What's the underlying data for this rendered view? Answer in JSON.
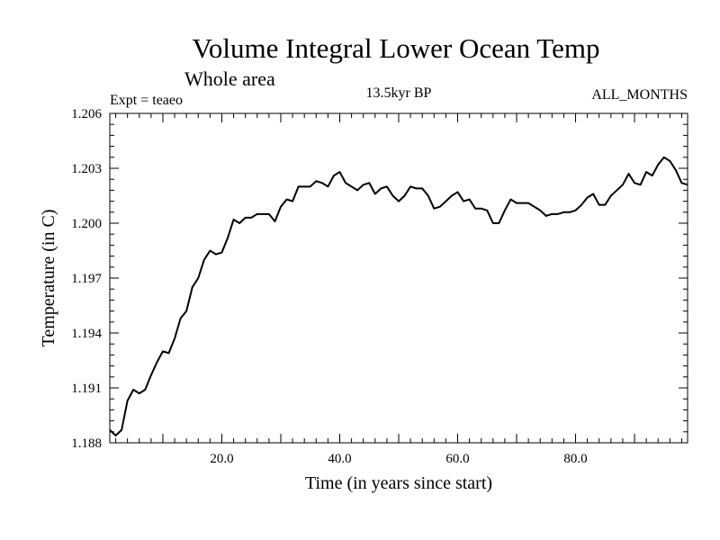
{
  "chart_data": {
    "type": "line",
    "title": "Volume Integral Lower Ocean Temp",
    "subtitle": "Whole area",
    "experiment_label": "Expt = teaeo",
    "period_label": "13.5kyr BP",
    "months_label": "ALL_MONTHS",
    "xlabel": "Time (in years since start)",
    "ylabel": "Temperature (in C)",
    "xlim": [
      1,
      99
    ],
    "ylim": [
      1.188,
      1.206
    ],
    "x_ticks": [
      20,
      40,
      60,
      80
    ],
    "x_tick_labels": [
      "20.0",
      "40.0",
      "60.0",
      "80.0"
    ],
    "y_ticks": [
      1.188,
      1.191,
      1.194,
      1.197,
      1.2,
      1.203,
      1.206
    ],
    "y_tick_labels": [
      "1.188",
      "1.191",
      "1.194",
      "1.197",
      "1.200",
      "1.203",
      "1.206"
    ],
    "grid": false,
    "series": [
      {
        "name": "Temperature",
        "x": [
          1,
          2,
          3,
          4,
          5,
          6,
          7,
          8,
          9,
          10,
          11,
          12,
          13,
          14,
          15,
          16,
          17,
          18,
          19,
          20,
          21,
          22,
          23,
          24,
          25,
          26,
          27,
          28,
          29,
          30,
          31,
          32,
          33,
          34,
          35,
          36,
          37,
          38,
          39,
          40,
          41,
          42,
          43,
          44,
          45,
          46,
          47,
          48,
          49,
          50,
          51,
          52,
          53,
          54,
          55,
          56,
          57,
          58,
          59,
          60,
          61,
          62,
          63,
          64,
          65,
          66,
          67,
          68,
          69,
          70,
          71,
          72,
          73,
          74,
          75,
          76,
          77,
          78,
          79,
          80,
          81,
          82,
          83,
          84,
          85,
          86,
          87,
          88,
          89,
          90,
          91,
          92,
          93,
          94,
          95,
          96,
          97,
          98,
          99
        ],
        "values": [
          1.1887,
          1.1884,
          1.1887,
          1.1903,
          1.1909,
          1.1907,
          1.1909,
          1.1917,
          1.1924,
          1.193,
          1.1929,
          1.1937,
          1.1948,
          1.1952,
          1.1965,
          1.197,
          1.198,
          1.1985,
          1.1983,
          1.1984,
          1.1992,
          1.2002,
          1.2,
          1.2003,
          1.2003,
          1.2005,
          1.2005,
          1.2005,
          1.2001,
          1.2009,
          1.2013,
          1.2012,
          1.202,
          1.202,
          1.202,
          1.2023,
          1.2022,
          1.202,
          1.2026,
          1.2028,
          1.2022,
          1.202,
          1.2018,
          1.2021,
          1.2022,
          1.2016,
          1.2019,
          1.202,
          1.2015,
          1.2012,
          1.2015,
          1.202,
          1.2019,
          1.2019,
          1.2015,
          1.2008,
          1.2009,
          1.2012,
          1.2015,
          1.2017,
          1.2012,
          1.2013,
          1.2008,
          1.2008,
          1.2007,
          1.2,
          1.2,
          1.2007,
          1.2013,
          1.2011,
          1.2011,
          1.2011,
          1.2009,
          1.2007,
          1.2004,
          1.2005,
          1.2005,
          1.2006,
          1.2006,
          1.2007,
          1.201,
          1.2014,
          1.2016,
          1.201,
          1.201,
          1.2015,
          1.2018,
          1.2021,
          1.2027,
          1.2022,
          1.2021,
          1.2028,
          1.2026,
          1.2032,
          1.2036,
          1.2034,
          1.2029,
          1.2022,
          1.2021
        ]
      }
    ]
  }
}
